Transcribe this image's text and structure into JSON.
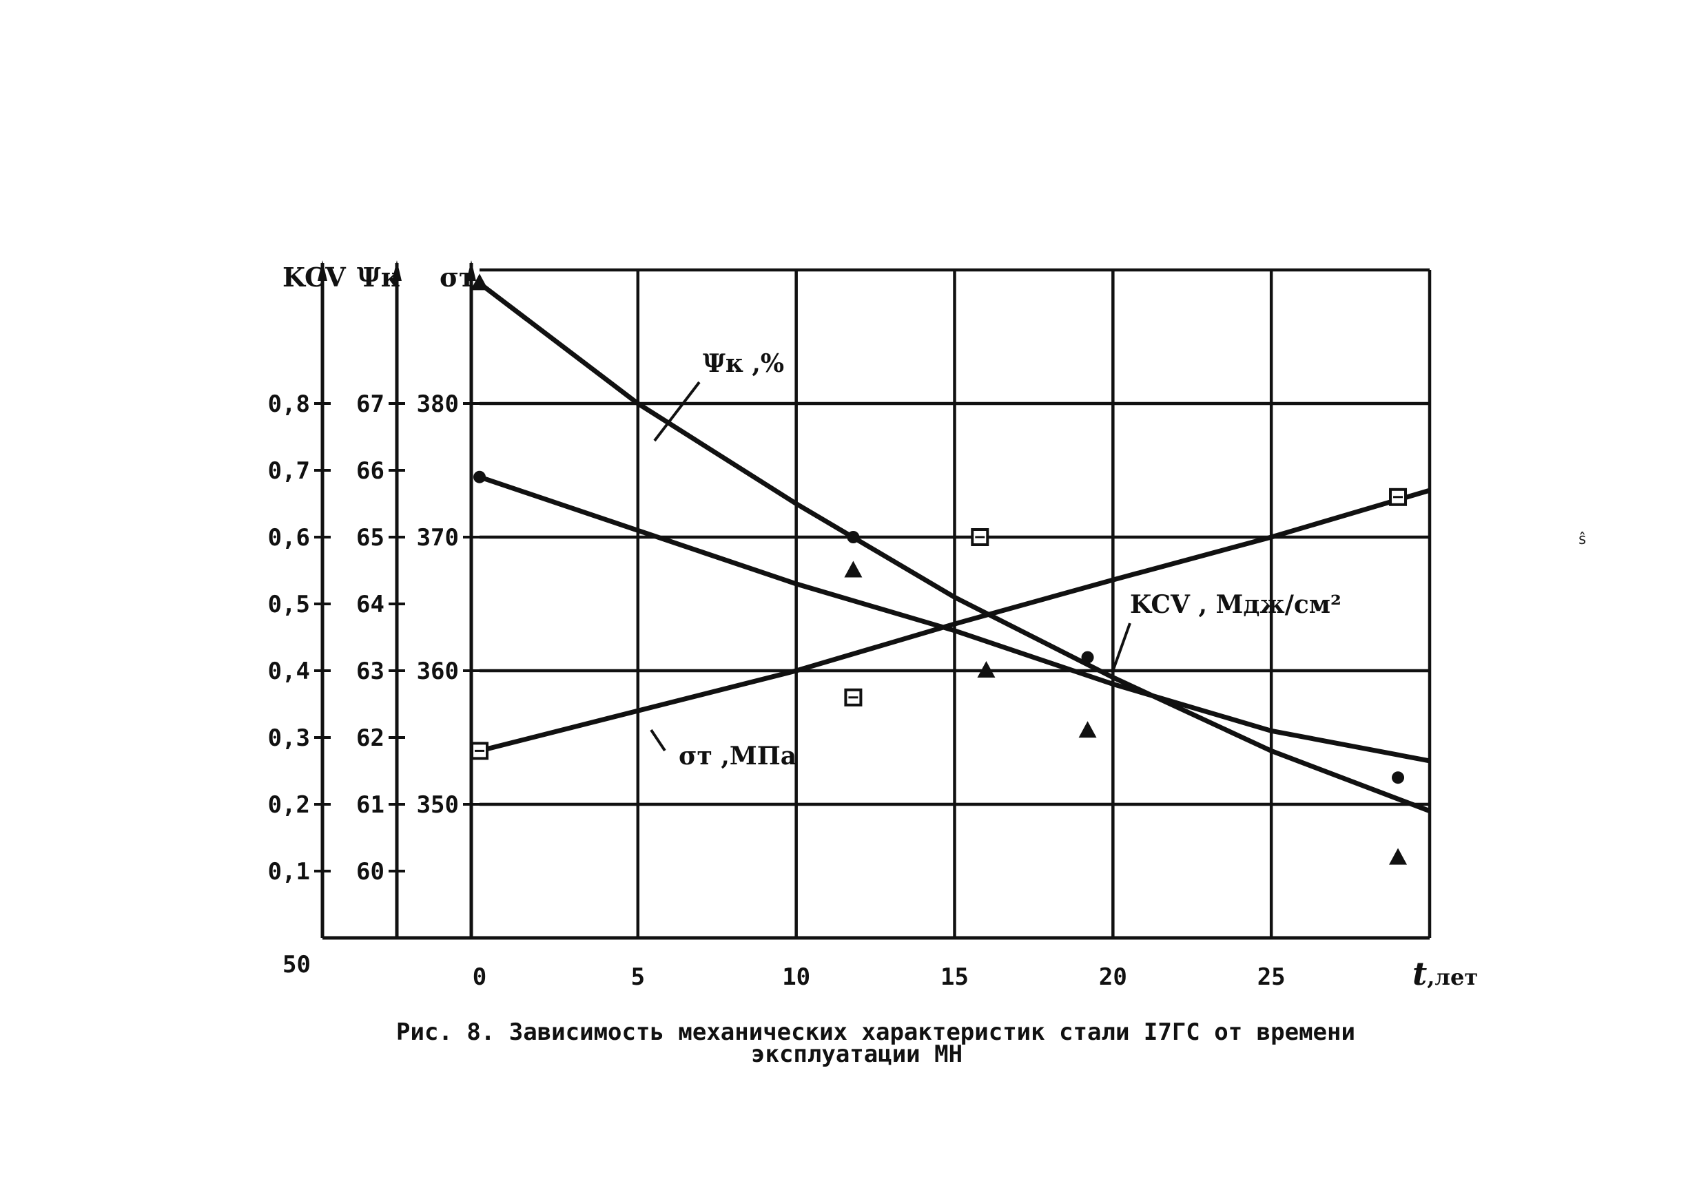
{
  "chart_data": {
    "type": "line",
    "x": {
      "label": "t",
      "unit": ",лет",
      "ticks": [
        0,
        5,
        10,
        15,
        20,
        25
      ],
      "range": [
        0,
        30
      ]
    },
    "axes": {
      "kcv": {
        "title": "KCV",
        "ticks": [
          {
            "v": 0.1,
            "t": "0,1"
          },
          {
            "v": 0.2,
            "t": "0,2"
          },
          {
            "v": 0.3,
            "t": "0,3"
          },
          {
            "v": 0.4,
            "t": "0,4"
          },
          {
            "v": 0.5,
            "t": "0,5"
          },
          {
            "v": 0.6,
            "t": "0,6"
          },
          {
            "v": 0.7,
            "t": "0,7"
          },
          {
            "v": 0.8,
            "t": "0,8"
          }
        ],
        "range": [
          0.0,
          1.0
        ]
      },
      "psi": {
        "title": "Ψк",
        "ticks": [
          {
            "v": 60,
            "t": "60"
          },
          {
            "v": 61,
            "t": "61"
          },
          {
            "v": 62,
            "t": "62"
          },
          {
            "v": 63,
            "t": "63"
          },
          {
            "v": 64,
            "t": "64"
          },
          {
            "v": 65,
            "t": "65"
          },
          {
            "v": 66,
            "t": "66"
          },
          {
            "v": 67,
            "t": "67"
          }
        ],
        "range": [
          59,
          69
        ]
      },
      "sigma": {
        "title": "σт",
        "ticks": [
          {
            "v": 350,
            "t": "350"
          },
          {
            "v": 360,
            "t": "360"
          },
          {
            "v": 370,
            "t": "370"
          },
          {
            "v": 380,
            "t": "380"
          }
        ],
        "range": [
          340,
          390
        ]
      }
    },
    "origin_label": "50",
    "series": [
      {
        "name": "Ψк ,%",
        "axis": "psi",
        "marker": "triangle",
        "line": [
          [
            0,
            68.8
          ],
          [
            5,
            67.0
          ],
          [
            10,
            65.5
          ],
          [
            15,
            64.1
          ],
          [
            20,
            62.9
          ],
          [
            25,
            61.8
          ],
          [
            30,
            60.9
          ]
        ],
        "points": [
          [
            0,
            68.8
          ],
          [
            11.8,
            64.5
          ],
          [
            16,
            63.0
          ],
          [
            19.2,
            62.1
          ],
          [
            29,
            60.2
          ]
        ]
      },
      {
        "name": "KCV , Мдж/см²",
        "axis": "kcv",
        "marker": "circle",
        "line": [
          [
            0,
            0.69
          ],
          [
            10,
            0.53
          ],
          [
            15,
            0.46
          ],
          [
            20,
            0.38
          ],
          [
            25,
            0.31
          ],
          [
            30,
            0.265
          ]
        ],
        "points": [
          [
            0,
            0.69
          ],
          [
            11.8,
            0.6
          ],
          [
            19.2,
            0.42
          ],
          [
            29,
            0.24
          ]
        ]
      },
      {
        "name": "σт ,МПа",
        "axis": "sigma",
        "marker": "square",
        "line": [
          [
            0,
            354
          ],
          [
            10,
            360
          ],
          [
            15,
            363.5
          ],
          [
            20,
            366.8
          ],
          [
            25,
            370
          ],
          [
            30,
            373.5
          ]
        ],
        "points": [
          [
            0,
            354
          ],
          [
            11.8,
            358
          ],
          [
            15.8,
            370
          ],
          [
            29,
            373
          ]
        ]
      }
    ],
    "grid": true
  },
  "caption": {
    "line1": "Рис. 8. Зависимость механических характеристик стали I7ГС от времени",
    "line2": "эксплуатации МН"
  },
  "side_mark": "ŝ"
}
